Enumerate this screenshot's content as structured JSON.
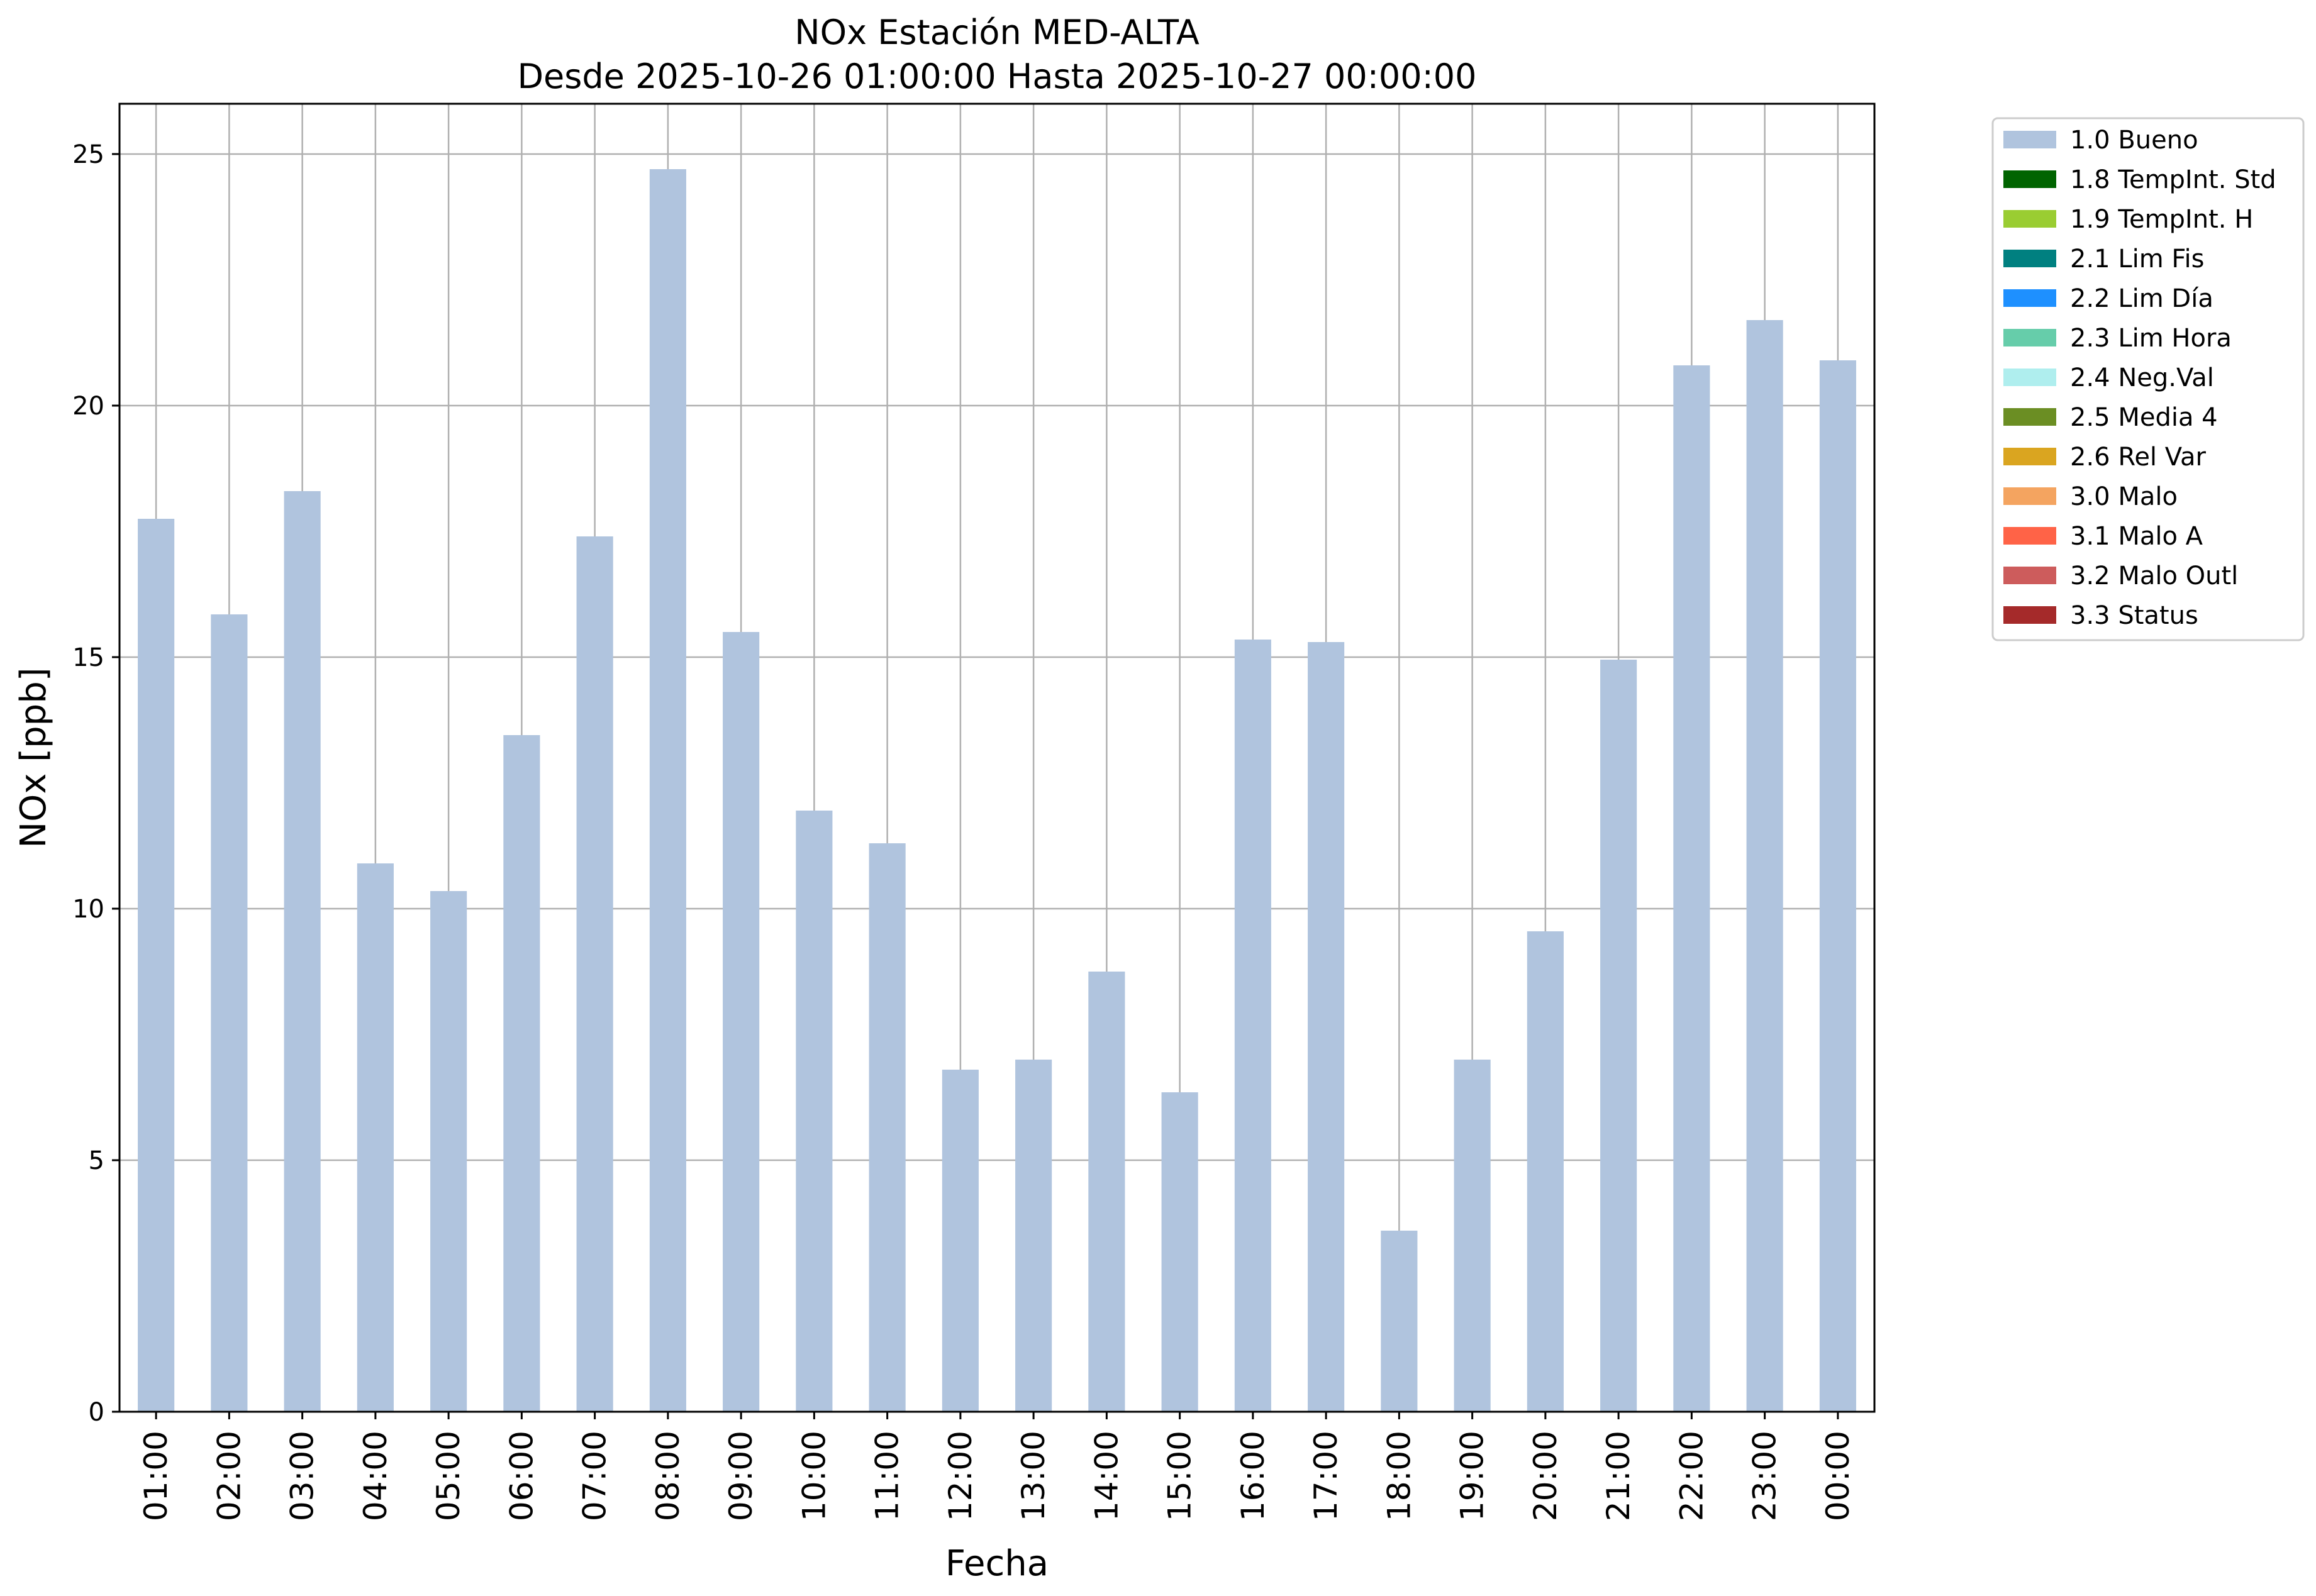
{
  "chart_data": {
    "type": "bar",
    "title": "NOx Estación MED-ALTA",
    "subtitle": "Desde 2025-10-26 01:00:00 Hasta 2025-10-27 00:00:00",
    "xlabel": "Fecha",
    "ylabel": "NOx [ppb]",
    "ylim": [
      0,
      26
    ],
    "yticks": [
      0,
      5,
      10,
      15,
      20,
      25
    ],
    "grid": true,
    "legend_position": "outside-right",
    "categories": [
      "01:00",
      "02:00",
      "03:00",
      "04:00",
      "05:00",
      "06:00",
      "07:00",
      "08:00",
      "09:00",
      "10:00",
      "11:00",
      "12:00",
      "13:00",
      "14:00",
      "15:00",
      "16:00",
      "17:00",
      "18:00",
      "19:00",
      "20:00",
      "21:00",
      "22:00",
      "23:00",
      "00:00"
    ],
    "series": [
      {
        "name": "1.0 Bueno",
        "color": "#b0c4de",
        "values": [
          17.75,
          15.85,
          18.3,
          10.9,
          10.35,
          13.45,
          17.4,
          24.7,
          15.5,
          11.95,
          11.3,
          6.8,
          7.0,
          8.75,
          6.35,
          15.35,
          15.3,
          3.6,
          7.0,
          9.55,
          14.95,
          20.8,
          21.7,
          20.9
        ]
      }
    ],
    "legend": [
      {
        "label": "1.0 Bueno",
        "color": "#b0c4de"
      },
      {
        "label": "1.8 TempInt. Std",
        "color": "#006400"
      },
      {
        "label": "1.9 TempInt. H",
        "color": "#9acd32"
      },
      {
        "label": "2.1 Lim Fis",
        "color": "#008080"
      },
      {
        "label": "2.2 Lim Día",
        "color": "#1e90ff"
      },
      {
        "label": "2.3 Lim Hora",
        "color": "#66cdaa"
      },
      {
        "label": "2.4 Neg.Val",
        "color": "#afeeee"
      },
      {
        "label": "2.5 Media 4",
        "color": "#6b8e23"
      },
      {
        "label": "2.6 Rel Var",
        "color": "#daa520"
      },
      {
        "label": "3.0 Malo",
        "color": "#f4a460"
      },
      {
        "label": "3.1 Malo A",
        "color": "#ff6347"
      },
      {
        "label": "3.2 Malo Outl",
        "color": "#cd5c5c"
      },
      {
        "label": "3.3 Status",
        "color": "#a52a2a"
      }
    ]
  }
}
